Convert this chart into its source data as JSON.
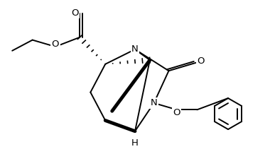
{
  "bg_color": "#ffffff",
  "line_color": "#000000",
  "line_width": 1.4,
  "fig_width": 3.8,
  "fig_height": 2.18,
  "dpi": 100,
  "xlim": [
    0,
    10
  ],
  "ylim": [
    0,
    5.74
  ]
}
